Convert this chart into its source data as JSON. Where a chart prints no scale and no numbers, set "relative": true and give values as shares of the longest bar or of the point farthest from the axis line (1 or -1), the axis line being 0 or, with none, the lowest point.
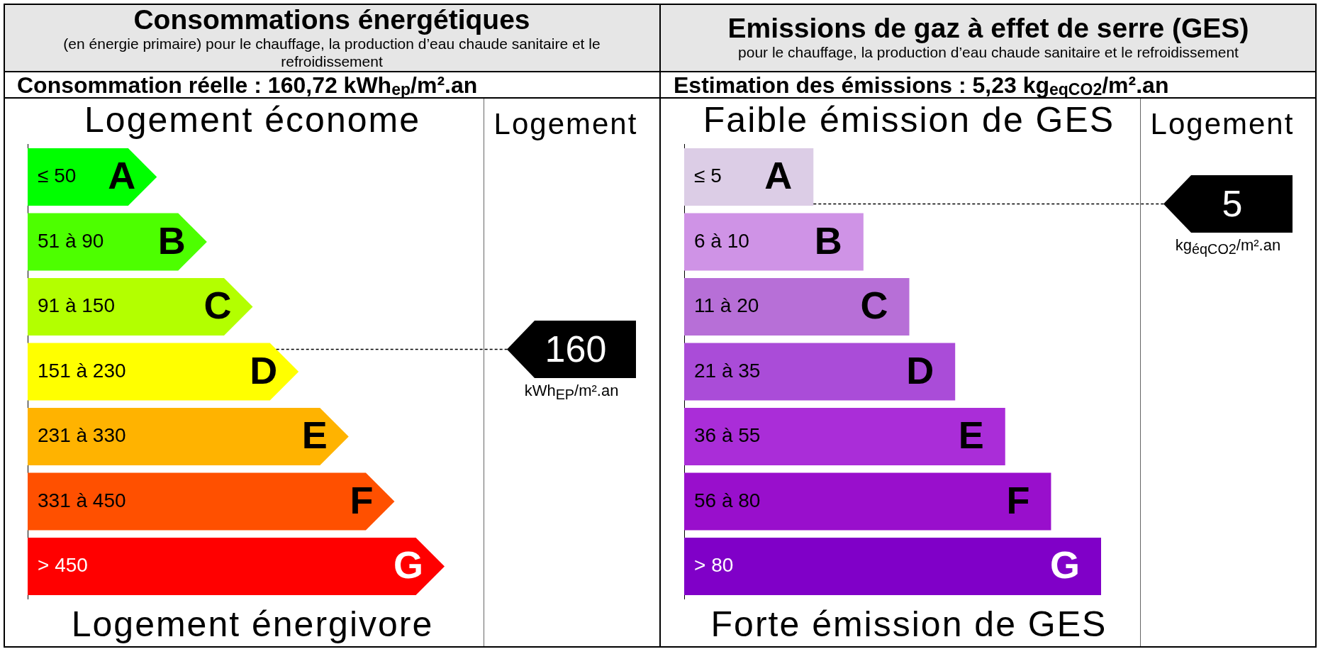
{
  "chart_data": [
    {
      "type": "bar",
      "orientation": "horizontal",
      "relative": true,
      "title": "Consommations énergétiques",
      "subtitle": "(en énergie primaire) pour le chauffage, la production d’eau chaude sanitaire et le refroidissement",
      "categories": [
        "≤ 50",
        "51 à 90",
        "91 à 150",
        "151 à 230",
        "231 à 330",
        "331 à 450",
        "> 450"
      ],
      "values": [
        0.31,
        0.43,
        0.54,
        0.65,
        0.77,
        0.88,
        1
      ],
      "colors": [
        "#00ff00",
        "#4dff00",
        "#b3ff00",
        "#ffff00",
        "#ffb300",
        "#ff5000",
        "#ff0000"
      ],
      "annotations": [
        "Consommation réelle : 160,72 kWh$_{ep}$/m².an",
        "Logement économe",
        "Logement énergivore",
        "Logement",
        "160",
        "kWh$_{EP}$/m².an",
        {
          "text": "A",
          "x": 0.31,
          "y": "≤ 50"
        },
        {
          "text": "B",
          "x": 0.43,
          "y": "51 à 90"
        },
        {
          "text": "C",
          "x": 0.54,
          "y": "91 à 150"
        },
        {
          "text": "D",
          "x": 0.65,
          "y": "151 à 230"
        },
        {
          "text": "E",
          "x": 0.77,
          "y": "231 à 330"
        },
        {
          "text": "F",
          "x": 0.88,
          "y": "331 à 450"
        },
        {
          "text": "G",
          "x": 1,
          "y": "> 450"
        }
      ]
    },
    {
      "type": "bar",
      "orientation": "horizontal",
      "relative": true,
      "title": "Emissions de gaz à effet de serre (GES)",
      "subtitle": "pour le chauffage, la production d’eau chaude sanitaire et le refroidissement",
      "categories": [
        "≤ 5",
        "6 à 10",
        "11 à 20",
        "21 à 35",
        "36 à 55",
        "56 à 80",
        "> 80"
      ],
      "values": [
        0.31,
        0.43,
        0.54,
        0.65,
        0.77,
        0.88,
        1
      ],
      "colors": [
        "#dccde6",
        "#cf93e6",
        "#b76fd7",
        "#aa4cd8",
        "#aa2dd8",
        "#990fcc",
        "#8000c8"
      ],
      "annotations": [
        "Estimation des émissions : 5,23 kg$_{eqCO2}$/m².an",
        "Faible émission de GES",
        "Forte émission de GES",
        "Logement",
        "5",
        "kg$_{éqCO2}$/m².an",
        {
          "text": "A",
          "x": 0.31,
          "y": "≤ 5"
        },
        {
          "text": "B",
          "x": 0.43,
          "y": "6 à 10"
        },
        {
          "text": "C",
          "x": 0.54,
          "y": "11 à 20"
        },
        {
          "text": "D",
          "x": 0.65,
          "y": "21 à 35"
        },
        {
          "text": "E",
          "x": 0.77,
          "y": "36 à 55"
        },
        {
          "text": "F",
          "x": 0.88,
          "y": "56 à 80"
        },
        {
          "text": "G",
          "x": 1,
          "y": "> 80"
        }
      ]
    }
  ]
}
